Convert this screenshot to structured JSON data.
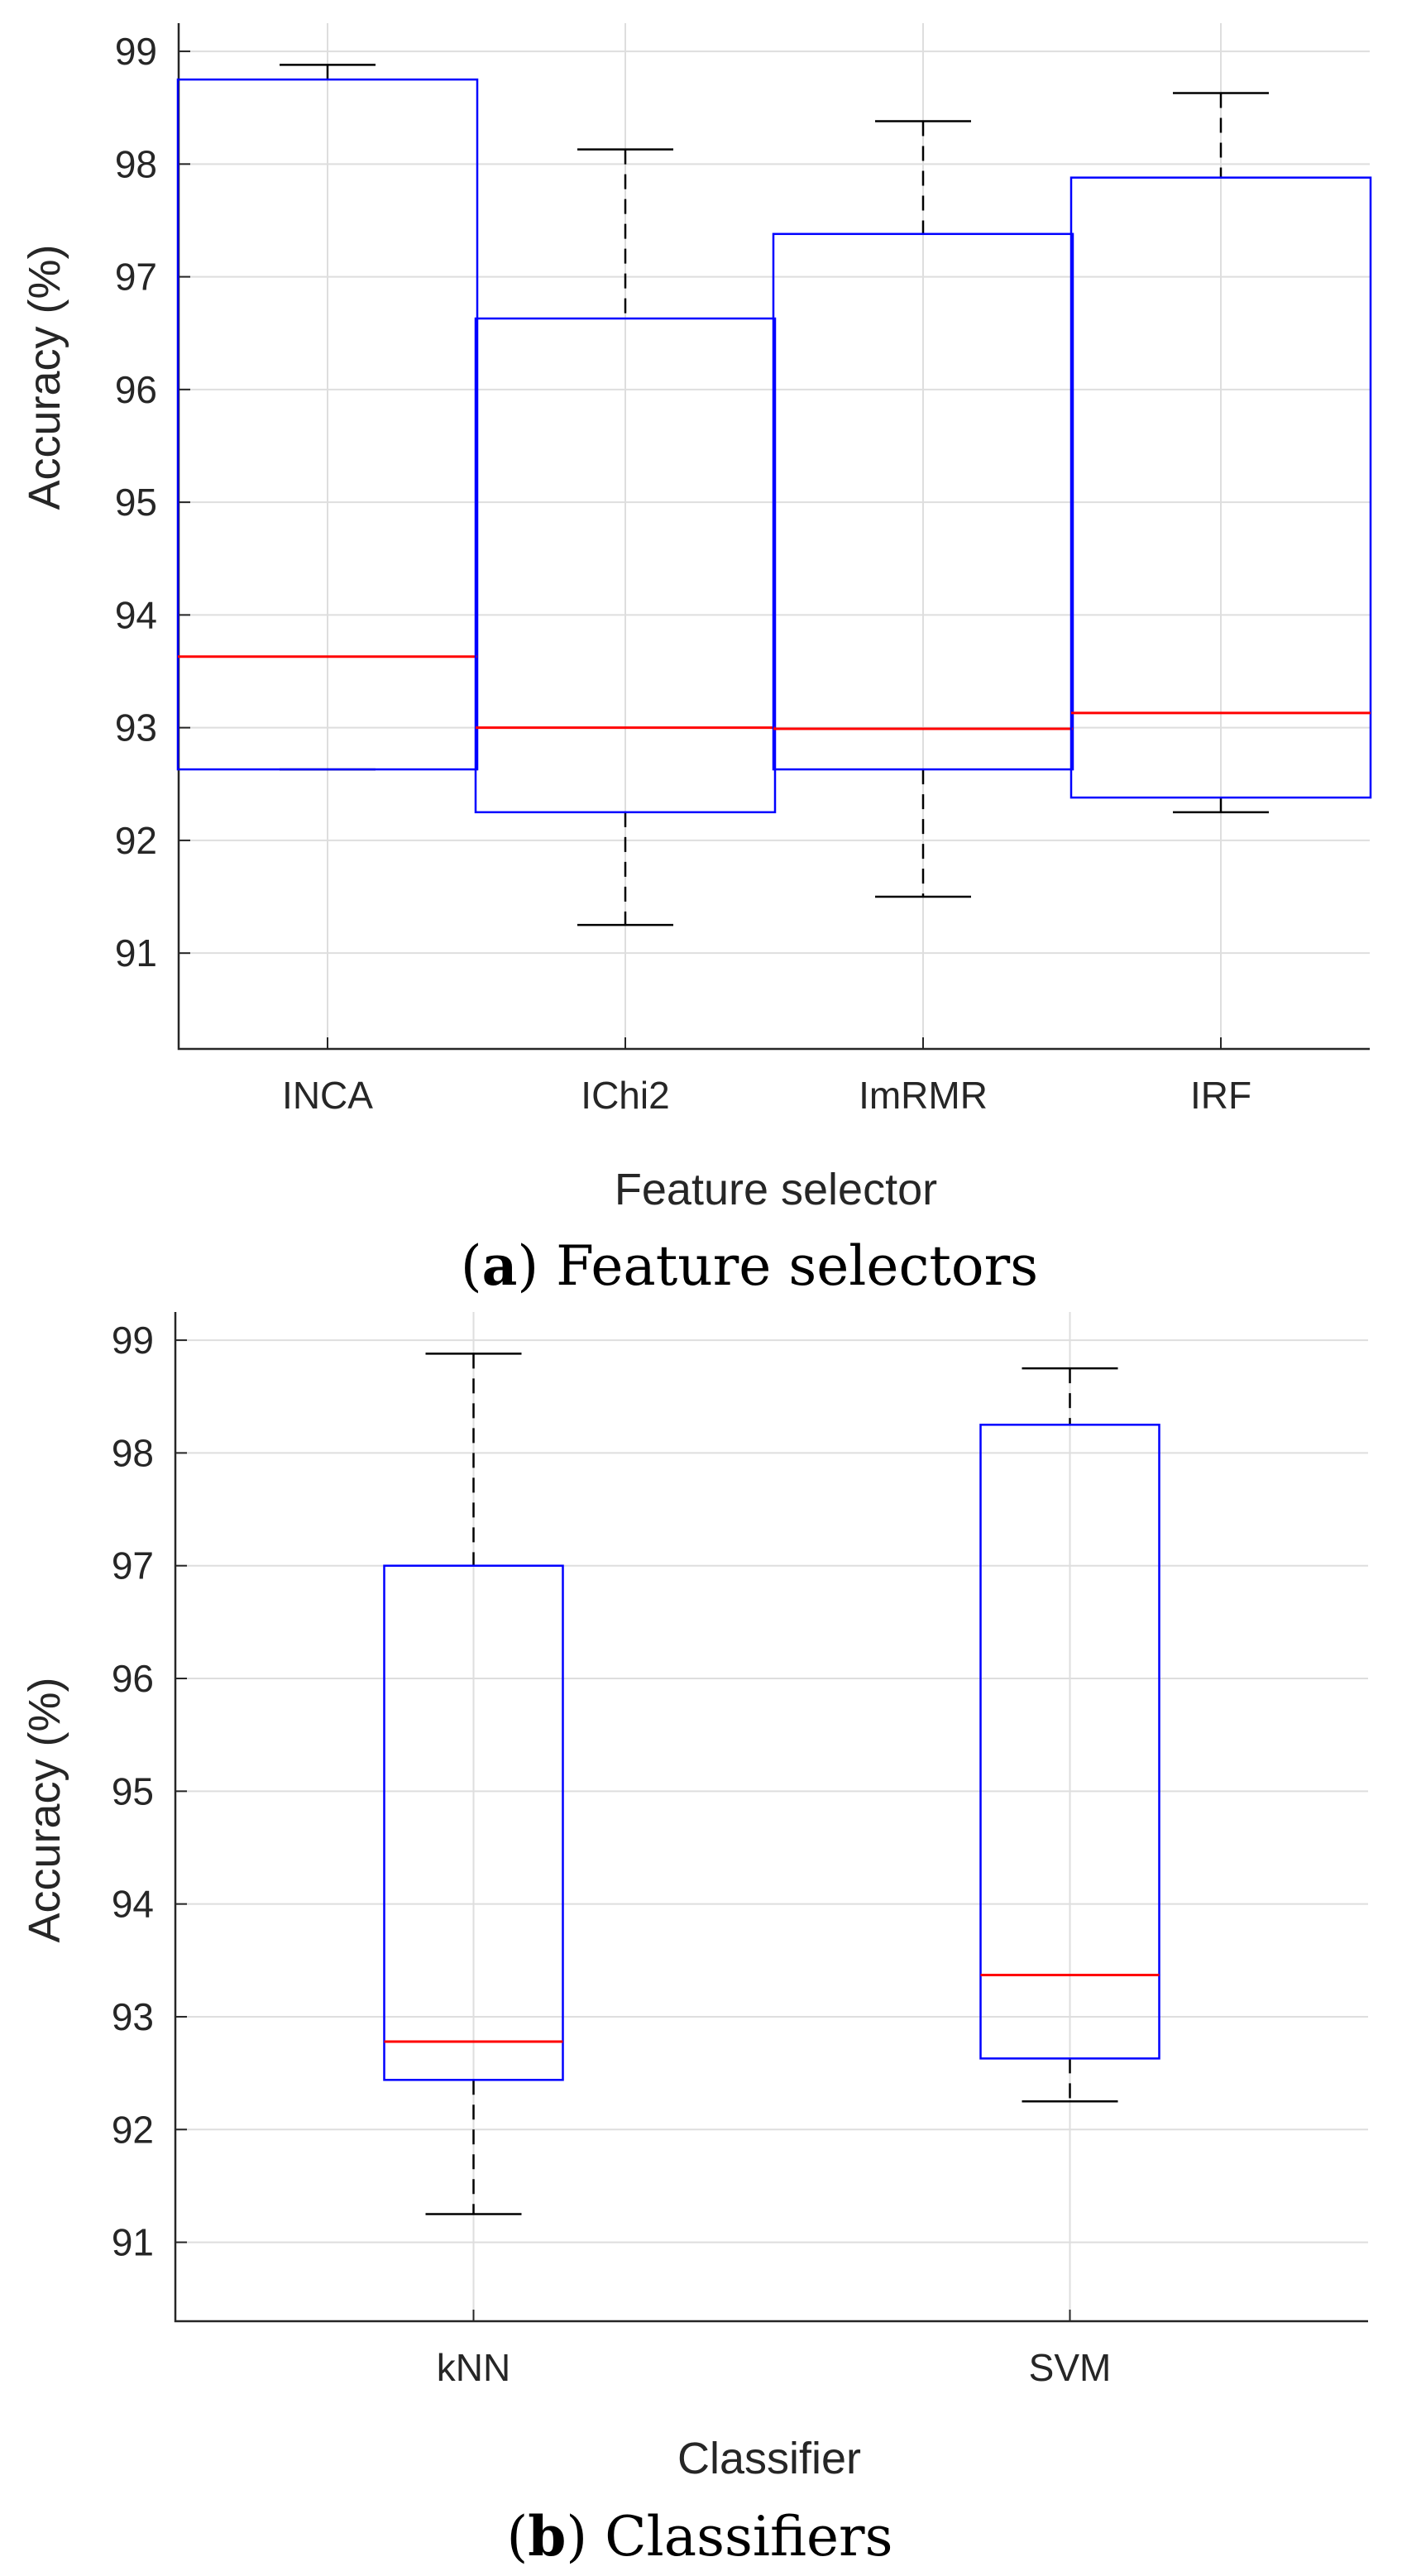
{
  "chart_data": [
    {
      "type": "box",
      "xlabel": "Feature selector",
      "ylabel": "Accuracy (%)",
      "caption": {
        "letter": "a",
        "text": "Feature selectors"
      },
      "ylim": [
        90.15,
        99.25
      ],
      "yticks": [
        "91",
        "92",
        "93",
        "94",
        "95",
        "96",
        "97",
        "98",
        "99"
      ],
      "grid": true,
      "categories": [
        "INCA",
        "IChi2",
        "ImRMR",
        "IRF"
      ],
      "boxes": [
        {
          "whisker_low": 92.63,
          "q1": 92.63,
          "median": 93.63,
          "q3": 98.75,
          "whisker_high": 98.88
        },
        {
          "whisker_low": 91.25,
          "q1": 92.25,
          "median": 93.0,
          "q3": 96.63,
          "whisker_high": 98.13
        },
        {
          "whisker_low": 91.5,
          "q1": 92.63,
          "median": 92.99,
          "q3": 97.38,
          "whisker_high": 98.38
        },
        {
          "whisker_low": 92.25,
          "q1": 92.38,
          "median": 93.13,
          "q3": 97.88,
          "whisker_high": 98.63
        }
      ]
    },
    {
      "type": "box",
      "xlabel": "Classifier",
      "ylabel": "Accuracy (%)",
      "caption": {
        "letter": "b",
        "text": "Classifiers"
      },
      "ylim": [
        90.3,
        99.25
      ],
      "yticks": [
        "91",
        "92",
        "93",
        "94",
        "95",
        "96",
        "97",
        "98",
        "99"
      ],
      "grid": true,
      "categories": [
        "kNN",
        "SVM"
      ],
      "boxes": [
        {
          "whisker_low": 91.25,
          "q1": 92.44,
          "median": 92.78,
          "q3": 97.0,
          "whisker_high": 98.88
        },
        {
          "whisker_low": 92.25,
          "q1": 92.63,
          "median": 93.37,
          "q3": 98.25,
          "whisker_high": 98.75
        }
      ]
    }
  ],
  "colors": {
    "box": "#0000ff",
    "median": "#ff0000",
    "whisker": "#000000",
    "grid": "#dedede",
    "axis": "#262626"
  }
}
